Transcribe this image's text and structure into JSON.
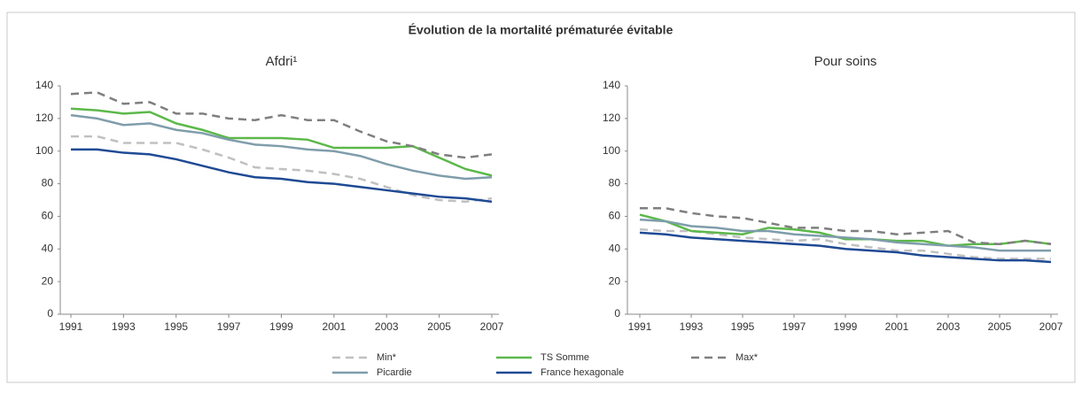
{
  "title": "Évolution de la mortalité prématurée évitable",
  "chart_data": [
    {
      "type": "line",
      "title": "Afdri¹",
      "x": [
        1991,
        1992,
        1993,
        1994,
        1995,
        1996,
        1997,
        1998,
        1999,
        2000,
        2001,
        2002,
        2003,
        2004,
        2005,
        2006,
        2007
      ],
      "xlim": [
        1991,
        2007
      ],
      "xticks": [
        1991,
        1993,
        1995,
        1997,
        1999,
        2001,
        2003,
        2005,
        2007
      ],
      "ylim": [
        0,
        140
      ],
      "yticks": [
        0,
        20,
        40,
        60,
        80,
        100,
        120,
        140
      ],
      "series": [
        {
          "name": "Min*",
          "color": "#c0c0c0",
          "dash": true,
          "values": [
            109,
            109,
            105,
            105,
            105,
            101,
            96,
            90,
            89,
            88,
            86,
            83,
            78,
            73,
            70,
            69,
            71
          ]
        },
        {
          "name": "TS Somme",
          "color": "#5cb84a",
          "dash": false,
          "values": [
            126,
            125,
            123,
            124,
            117,
            113,
            108,
            108,
            108,
            107,
            102,
            102,
            102,
            103,
            96,
            89,
            85
          ]
        },
        {
          "name": "Max*",
          "color": "#7f7f7f",
          "dash": true,
          "values": [
            135,
            136,
            129,
            130,
            123,
            123,
            120,
            119,
            122,
            119,
            119,
            112,
            106,
            103,
            98,
            96,
            98
          ]
        },
        {
          "name": "Picardie",
          "color": "#7f9dab",
          "dash": false,
          "values": [
            122,
            120,
            116,
            117,
            113,
            111,
            107,
            104,
            103,
            101,
            100,
            97,
            92,
            88,
            85,
            83,
            84
          ]
        },
        {
          "name": "France hexagonale",
          "color": "#1f4a94",
          "dash": false,
          "values": [
            101,
            101,
            99,
            98,
            95,
            91,
            87,
            84,
            83,
            81,
            80,
            78,
            76,
            74,
            72,
            71,
            69
          ]
        }
      ]
    },
    {
      "type": "line",
      "title": "Pour soins",
      "x": [
        1991,
        1992,
        1993,
        1994,
        1995,
        1996,
        1997,
        1998,
        1999,
        2000,
        2001,
        2002,
        2003,
        2004,
        2005,
        2006,
        2007
      ],
      "xlim": [
        1991,
        2007
      ],
      "xticks": [
        1991,
        1993,
        1995,
        1997,
        1999,
        2001,
        2003,
        2005,
        2007
      ],
      "ylim": [
        0,
        140
      ],
      "yticks": [
        0,
        20,
        40,
        60,
        80,
        100,
        120,
        140
      ],
      "series": [
        {
          "color": "#c0c0c0",
          "dash": true,
          "values": [
            52,
            51,
            51,
            49,
            47,
            46,
            45,
            46,
            43,
            41,
            39,
            39,
            37,
            35,
            34,
            34,
            34
          ]
        },
        {
          "color": "#5cb84a",
          "dash": false,
          "values": [
            61,
            57,
            51,
            50,
            49,
            53,
            52,
            50,
            46,
            46,
            45,
            45,
            42,
            43,
            43,
            45,
            43
          ]
        },
        {
          "color": "#7f7f7f",
          "dash": true,
          "values": [
            65,
            65,
            62,
            60,
            59,
            56,
            53,
            53,
            51,
            51,
            49,
            50,
            51,
            44,
            43,
            45,
            43
          ]
        },
        {
          "color": "#7f9dab",
          "dash": false,
          "values": [
            58,
            57,
            54,
            53,
            51,
            51,
            49,
            48,
            47,
            46,
            44,
            43,
            42,
            41,
            39,
            39,
            39
          ]
        },
        {
          "color": "#1f4a94",
          "dash": false,
          "values": [
            50,
            49,
            47,
            46,
            45,
            44,
            43,
            42,
            40,
            39,
            38,
            36,
            35,
            34,
            33,
            33,
            32
          ]
        }
      ]
    }
  ]
}
